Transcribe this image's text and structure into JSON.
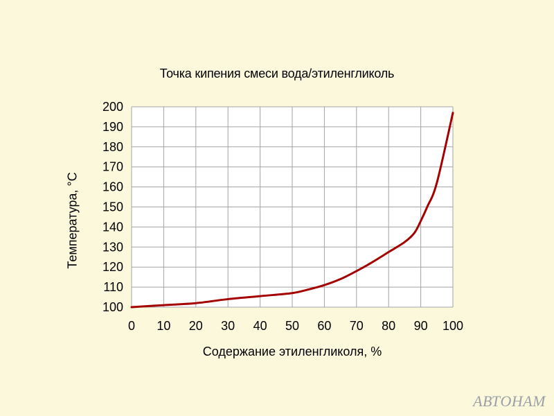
{
  "chart_data": {
    "type": "line",
    "title": "Точка кипения смеси вода/этиленгликоль",
    "xlabel": "Содержание этиленгликоля, %",
    "ylabel": "Температура, °С",
    "xlim": [
      0,
      100
    ],
    "ylim": [
      100,
      200
    ],
    "xticks": [
      0,
      10,
      20,
      30,
      40,
      50,
      60,
      70,
      80,
      90,
      100
    ],
    "yticks": [
      100,
      110,
      120,
      130,
      140,
      150,
      160,
      170,
      180,
      190,
      200
    ],
    "grid": true,
    "line_color": "#a50000",
    "x": [
      0,
      10,
      20,
      30,
      40,
      50,
      55,
      60,
      65,
      70,
      75,
      80,
      85,
      88,
      90,
      92,
      95,
      100
    ],
    "y": [
      100,
      101,
      102,
      104,
      105.5,
      107,
      108.8,
      111,
      114,
      118,
      122.5,
      127.5,
      132.5,
      137,
      143,
      150,
      162,
      197
    ]
  },
  "watermark": "АВТОНАМ"
}
